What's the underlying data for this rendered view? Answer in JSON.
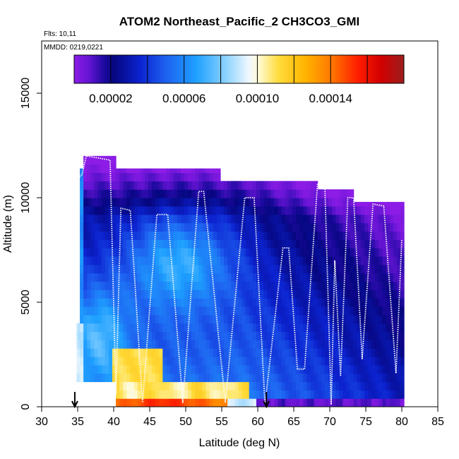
{
  "chart_data": {
    "type": "heatmap",
    "title": "ATOM2 Northeast_Pacific_2 CH3CO3_GMI",
    "flights_label": "Flts: 10,11",
    "dates_label": "MMDD: 0219,0221",
    "xlabel": "Latitude (deg N)",
    "ylabel": "Altitude (m)",
    "xlim": [
      30,
      85
    ],
    "ylim": [
      0,
      17500
    ],
    "xticks": [
      "30",
      "35",
      "40",
      "45",
      "50",
      "55",
      "60",
      "65",
      "70",
      "75",
      "80",
      "85"
    ],
    "yticks": [
      "0",
      "5000",
      "10000",
      "15000"
    ],
    "colorbar": {
      "range": [
        0,
        0.00018
      ],
      "tick_labels": [
        "0.00002",
        "0.00006",
        "0.00010",
        "0.00014"
      ],
      "tick_values": [
        2e-05,
        6e-05,
        0.0001,
        0.00014
      ]
    },
    "column_tops_m": [
      {
        "lat_range": [
          34.8,
          35.5
        ],
        "top": 4000
      },
      {
        "lat_range": [
          35.5,
          36
        ],
        "top": 11400
      },
      {
        "lat_range": [
          36,
          40.2
        ],
        "top": 12000
      },
      {
        "lat_range": [
          40.2,
          54.8
        ],
        "top": 11400
      },
      {
        "lat_range": [
          54.8,
          68.5
        ],
        "top": 10800
      },
      {
        "lat_range": [
          68.5,
          73.5
        ],
        "top": 10400
      },
      {
        "lat_range": [
          73.5,
          80.2
        ],
        "top": 9800
      },
      {
        "lat_range": [
          80.2,
          80.4
        ],
        "top": 5000
      }
    ],
    "gap_bottom_lat_range": [
      35,
      40.2
    ],
    "flight_track_points": [
      [
        34.8,
        1200
      ],
      [
        35.2,
        11000
      ],
      [
        35.6,
        11100
      ],
      [
        36.2,
        12000
      ],
      [
        39.5,
        11800
      ],
      [
        40.3,
        600
      ],
      [
        41.0,
        9500
      ],
      [
        42.3,
        9400
      ],
      [
        44.0,
        200
      ],
      [
        46.0,
        9200
      ],
      [
        47.5,
        9200
      ],
      [
        49.6,
        200
      ],
      [
        51.8,
        10300
      ],
      [
        52.5,
        10300
      ],
      [
        55.5,
        200
      ],
      [
        58.2,
        10000
      ],
      [
        59.5,
        10000
      ],
      [
        61.0,
        100
      ],
      [
        63.5,
        7600
      ],
      [
        64.3,
        7600
      ],
      [
        65.5,
        1800
      ],
      [
        66.5,
        1800
      ],
      [
        68.3,
        10700
      ],
      [
        69.3,
        10700
      ],
      [
        70.2,
        100
      ],
      [
        70.7,
        7000
      ],
      [
        71.5,
        1500
      ],
      [
        72.5,
        10000
      ],
      [
        73.3,
        10000
      ],
      [
        74.5,
        2300
      ],
      [
        76.0,
        9700
      ],
      [
        77.5,
        9600
      ],
      [
        79.2,
        1600
      ],
      [
        80.0,
        8000
      ]
    ],
    "arrow_latitudes": [
      34.6,
      61.2
    ]
  }
}
